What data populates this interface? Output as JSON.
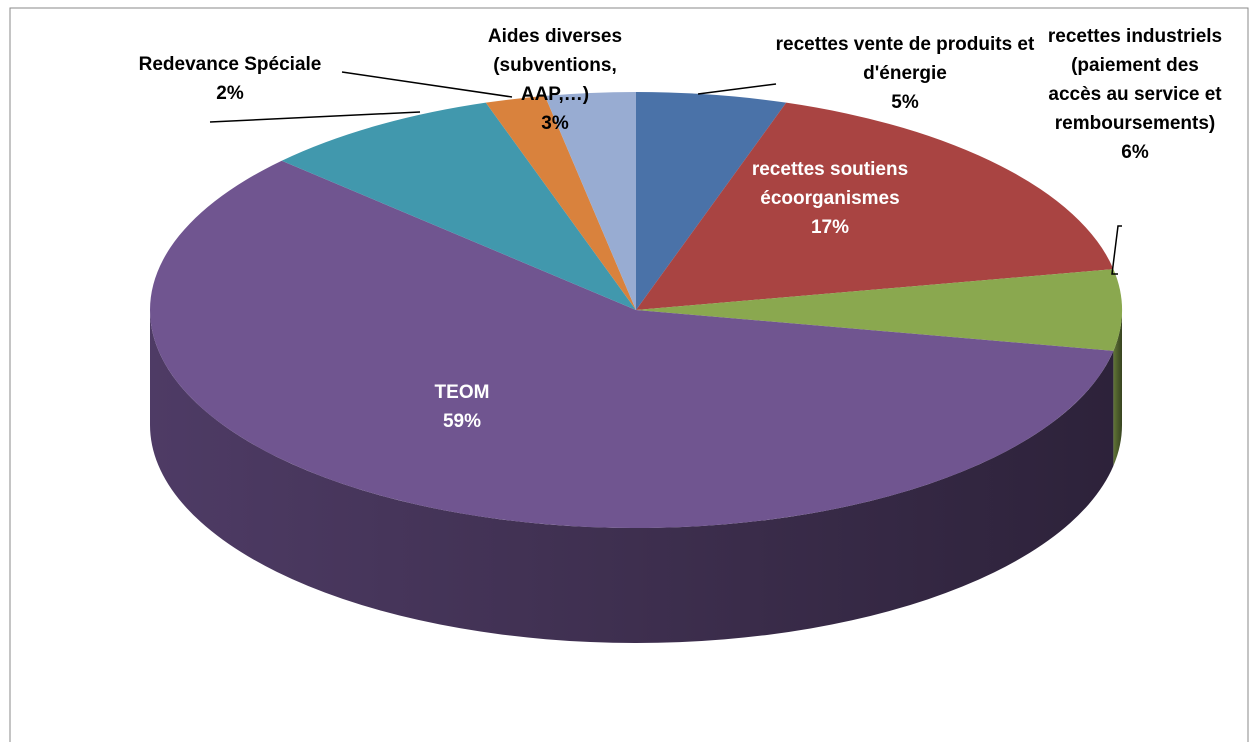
{
  "chart_data": {
    "type": "pie",
    "categories": [
      "recettes vente de produits et d'énergie",
      "recettes soutiens écoorganismes",
      "recettes industriels (paiement des accès au service et remboursements)",
      "TEOM",
      null,
      "Redevance Spéciale",
      "Aides diverses (subventions, AAP,…)"
    ],
    "values": [
      5,
      17,
      6,
      59,
      8,
      2,
      3
    ],
    "value_labels": [
      "5%",
      "17%",
      "6%",
      "59%",
      null,
      "2%",
      "3%"
    ],
    "colors": [
      "#4a72a8",
      "#a94442",
      "#8aa84f",
      "#705590",
      "#4198ad",
      "#d9823d",
      "#98acd2"
    ],
    "three_d": true
  }
}
